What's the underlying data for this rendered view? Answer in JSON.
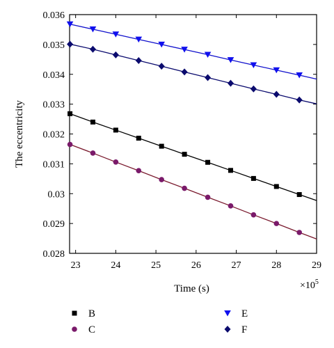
{
  "chart_data": {
    "type": "line",
    "xlabel": "Time (s)",
    "ylabel": "The eccentricity",
    "x_multiplier_label": "×10",
    "x_multiplier_exp": "5",
    "xlim": [
      22.85,
      29
    ],
    "ylim": [
      0.028,
      0.036
    ],
    "xticks": [
      23,
      24,
      25,
      26,
      27,
      28,
      29
    ],
    "yticks": [
      0.028,
      0.029,
      0.03,
      0.031,
      0.032,
      0.033,
      0.034,
      0.035,
      0.036
    ],
    "ytick_labels": [
      "0.028",
      "0.029",
      "0.03",
      "0.031",
      "0.032",
      "0.033",
      "0.034",
      "0.035",
      "0.036"
    ],
    "grid": false,
    "legend_position": "below",
    "x": [
      22.86,
      23.43,
      24.0,
      24.57,
      25.14,
      25.71,
      26.29,
      26.86,
      27.43,
      28.0,
      28.57
    ],
    "series": [
      {
        "name": "B",
        "marker": "square",
        "marker_color": "#000000",
        "line_color": "#000000",
        "values": [
          0.03268,
          0.0324,
          0.03213,
          0.03186,
          0.03159,
          0.03132,
          0.03105,
          0.03078,
          0.03051,
          0.03024,
          0.02997
        ],
        "line_end": [
          29.0,
          0.02977
        ]
      },
      {
        "name": "C",
        "marker": "circle",
        "marker_color": "#7a1a6a",
        "line_color": "#7a1a2e",
        "values": [
          0.03165,
          0.03136,
          0.03106,
          0.03077,
          0.03047,
          0.03018,
          0.02988,
          0.02959,
          0.02929,
          0.029,
          0.0287
        ],
        "line_end": [
          29.0,
          0.02848
        ]
      },
      {
        "name": "E",
        "marker": "triangle-down",
        "marker_color": "#1010ee",
        "line_color": "#1010cc",
        "values": [
          0.03568,
          0.03551,
          0.03534,
          0.03517,
          0.035,
          0.03483,
          0.03466,
          0.03448,
          0.03431,
          0.03414,
          0.03397
        ],
        "line_end": [
          29.0,
          0.03384
        ]
      },
      {
        "name": "F",
        "marker": "diamond",
        "marker_color": "#0b0b6e",
        "line_color": "#0b0b6e",
        "values": [
          0.03501,
          0.03484,
          0.03465,
          0.03446,
          0.03427,
          0.03408,
          0.03389,
          0.0337,
          0.03351,
          0.03333,
          0.03314
        ],
        "line_end": [
          29.0,
          0.03301
        ]
      }
    ]
  }
}
